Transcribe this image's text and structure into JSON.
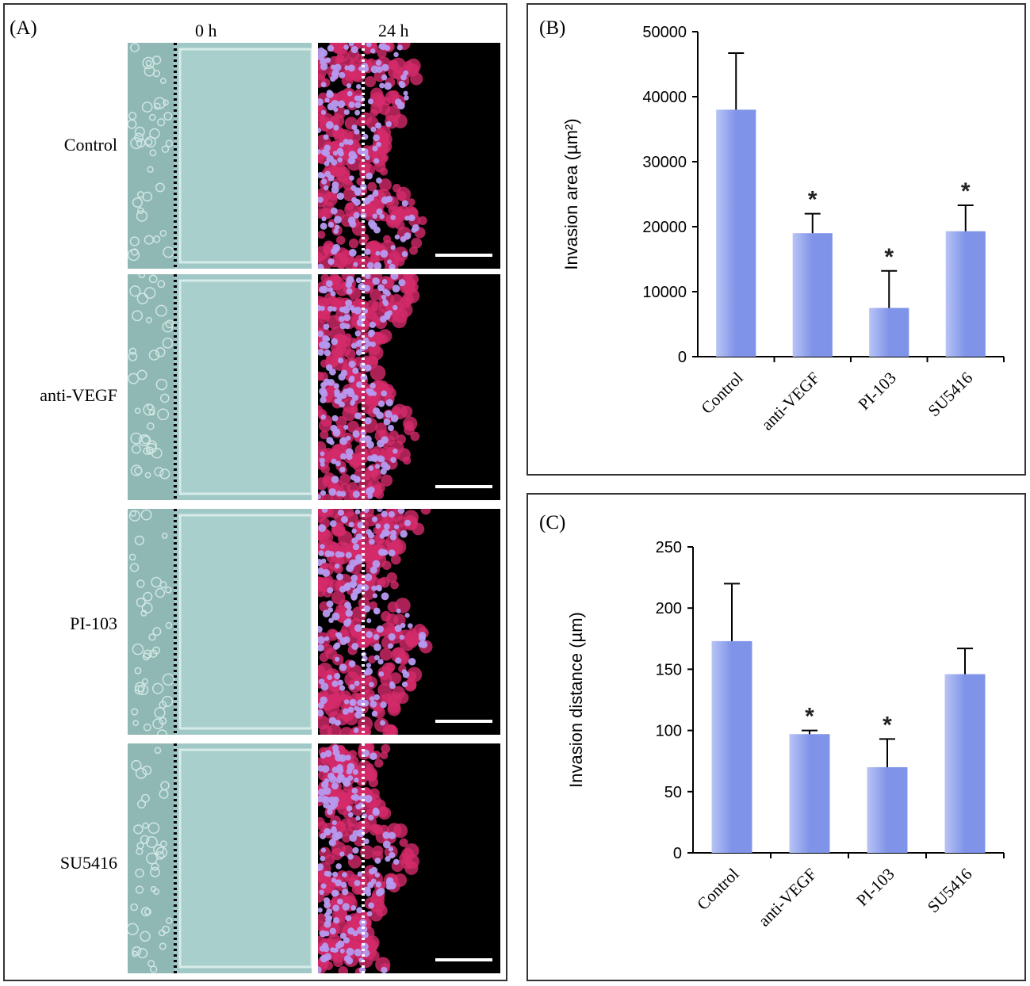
{
  "panel_a": {
    "label": "(A)",
    "columns": [
      "0 h",
      "24 h"
    ],
    "rows": [
      "Control",
      "anti-VEGF",
      "PI-103",
      "SU5416"
    ]
  },
  "colors": {
    "bar": "#7f93e8",
    "bar_light": "#b8c4f5",
    "phase_bg": "#9fc8c6",
    "fluor_cell": "#d42a6a",
    "fluor_nucleus": "#b69af0"
  },
  "chart_data": [
    {
      "panel_label": "(B)",
      "type": "bar",
      "categories": [
        "Control",
        "anti-VEGF",
        "PI-103",
        "SU5416"
      ],
      "values": [
        38000,
        19000,
        7500,
        19300
      ],
      "errors": [
        8700,
        3000,
        5700,
        4000
      ],
      "significant": [
        false,
        true,
        true,
        true
      ],
      "marker": "*",
      "ylabel": "Invasion area (µm²)",
      "ylim": [
        0,
        50000
      ],
      "yticks": [
        0,
        10000,
        20000,
        30000,
        40000,
        50000
      ]
    },
    {
      "panel_label": "(C)",
      "type": "bar",
      "categories": [
        "Control",
        "anti-VEGF",
        "PI-103",
        "SU5416"
      ],
      "values": [
        173,
        97,
        70,
        146
      ],
      "errors": [
        47,
        3,
        23,
        21
      ],
      "significant": [
        false,
        true,
        true,
        false
      ],
      "marker": "*",
      "ylabel": "Invasion distance (µm)",
      "ylim": [
        0,
        250
      ],
      "yticks": [
        0,
        50,
        100,
        150,
        200,
        250
      ]
    }
  ]
}
